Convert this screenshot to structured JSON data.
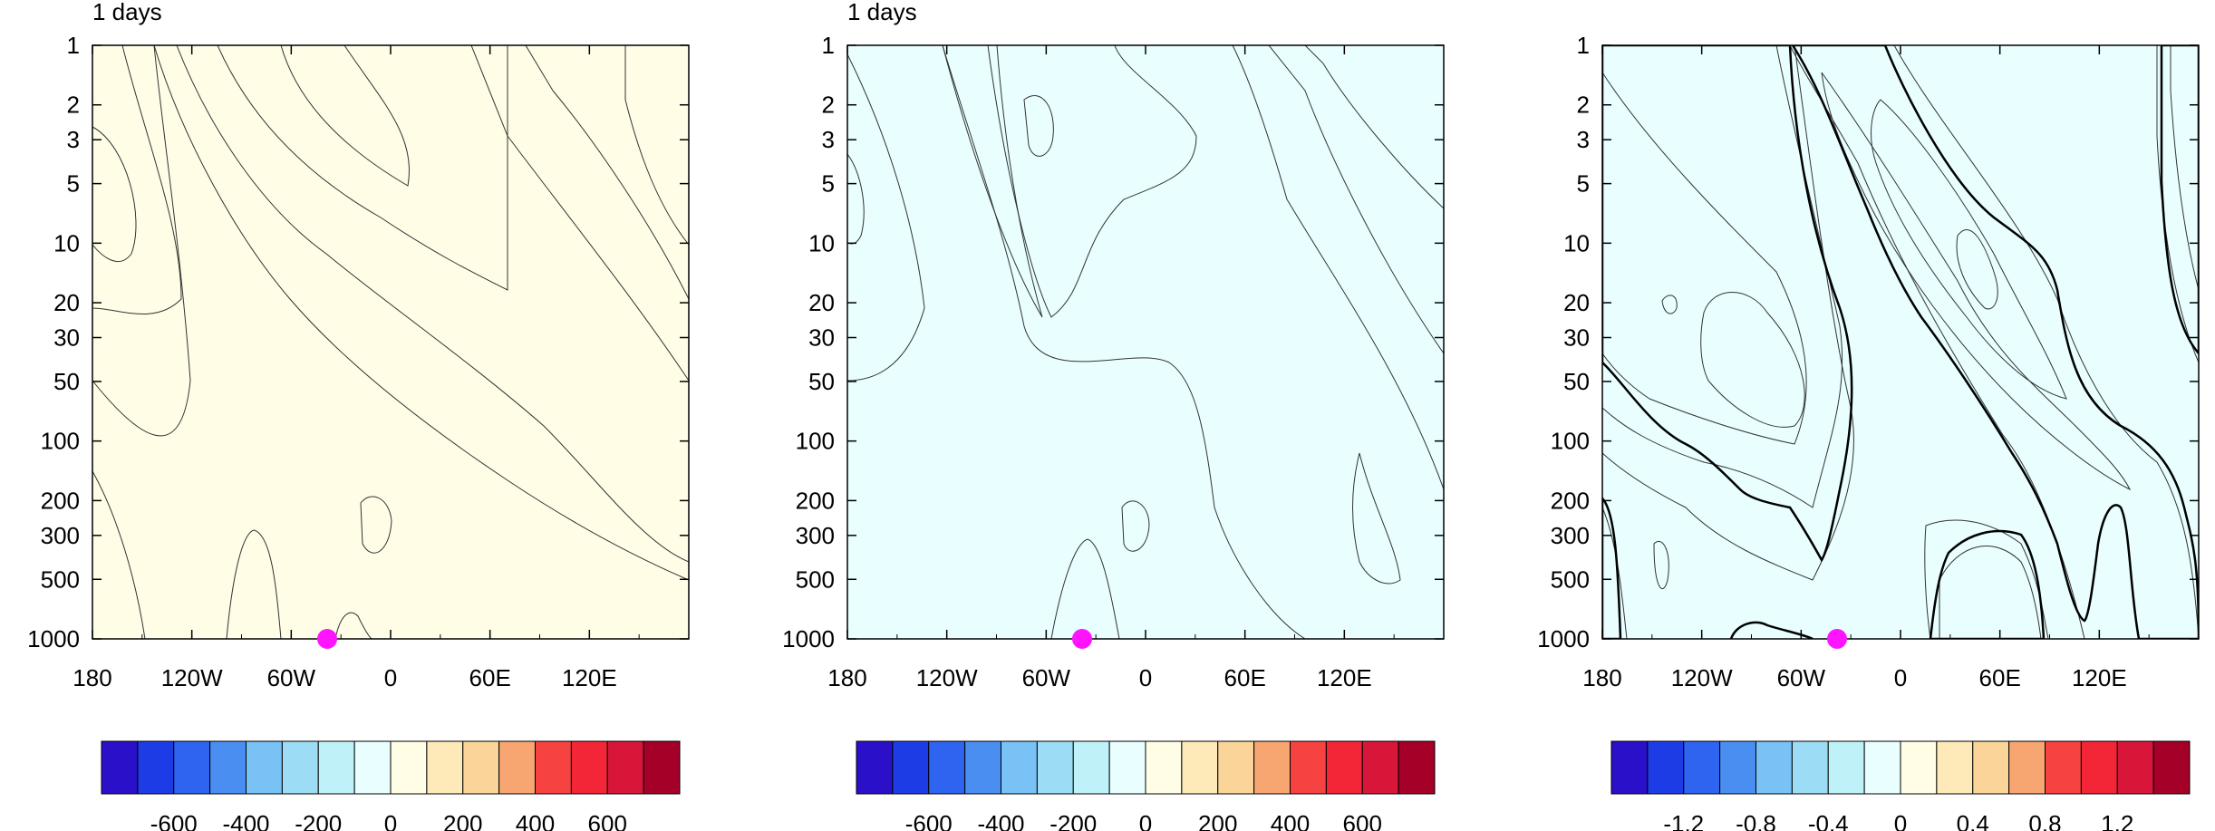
{
  "colors": {
    "palette": [
      "#2a10c8",
      "#1e3ce6",
      "#2e64f0",
      "#4a8ef2",
      "#78c2f5",
      "#9cdcf5",
      "#bff2f8",
      "#e8feff",
      "#fffde6",
      "#fdeab8",
      "#fbd49a",
      "#f7a672",
      "#f74242",
      "#f22636",
      "#d8163a",
      "#a50028"
    ],
    "marker": "#ff14ff"
  },
  "chart_data": [
    {
      "type": "heatmap",
      "title": "1 days",
      "x_ticks": [
        "180",
        "120W",
        "60W",
        "0",
        "60E",
        "120E"
      ],
      "y_ticks": [
        "1",
        "2",
        "3",
        "5",
        "10",
        "20",
        "30",
        "50",
        "100",
        "200",
        "300",
        "500",
        "1000"
      ],
      "y_scale": "log",
      "ylim": [
        1000,
        1
      ],
      "marker": {
        "lon": -35,
        "level": 1000
      },
      "colorbar_labels": [
        "-600",
        "-400",
        "-200",
        "0",
        "200",
        "400",
        "600"
      ]
    },
    {
      "type": "heatmap",
      "title": "1 days",
      "x_ticks": [
        "180",
        "120W",
        "60W",
        "0",
        "60E",
        "120E"
      ],
      "y_ticks": [
        "1",
        "2",
        "3",
        "5",
        "10",
        "20",
        "30",
        "50",
        "100",
        "200",
        "300",
        "500",
        "1000"
      ],
      "y_scale": "log",
      "ylim": [
        1000,
        1
      ],
      "marker": {
        "lon": -35,
        "level": 1000
      },
      "colorbar_labels": [
        "-600",
        "-400",
        "-200",
        "0",
        "200",
        "400",
        "600"
      ]
    },
    {
      "type": "heatmap",
      "title": "",
      "x_ticks": [
        "180",
        "120W",
        "60W",
        "0",
        "60E",
        "120E"
      ],
      "y_ticks": [
        "1",
        "2",
        "3",
        "5",
        "10",
        "20",
        "30",
        "50",
        "100",
        "200",
        "300",
        "500",
        "1000"
      ],
      "y_scale": "log",
      "ylim": [
        1000,
        1
      ],
      "hatching": true,
      "marker": {
        "lon": -35,
        "level": 1000
      },
      "colorbar_labels": [
        "-1.2",
        "-0.8",
        "-0.4",
        "0",
        "0.4",
        "0.8",
        "1.2"
      ]
    }
  ]
}
